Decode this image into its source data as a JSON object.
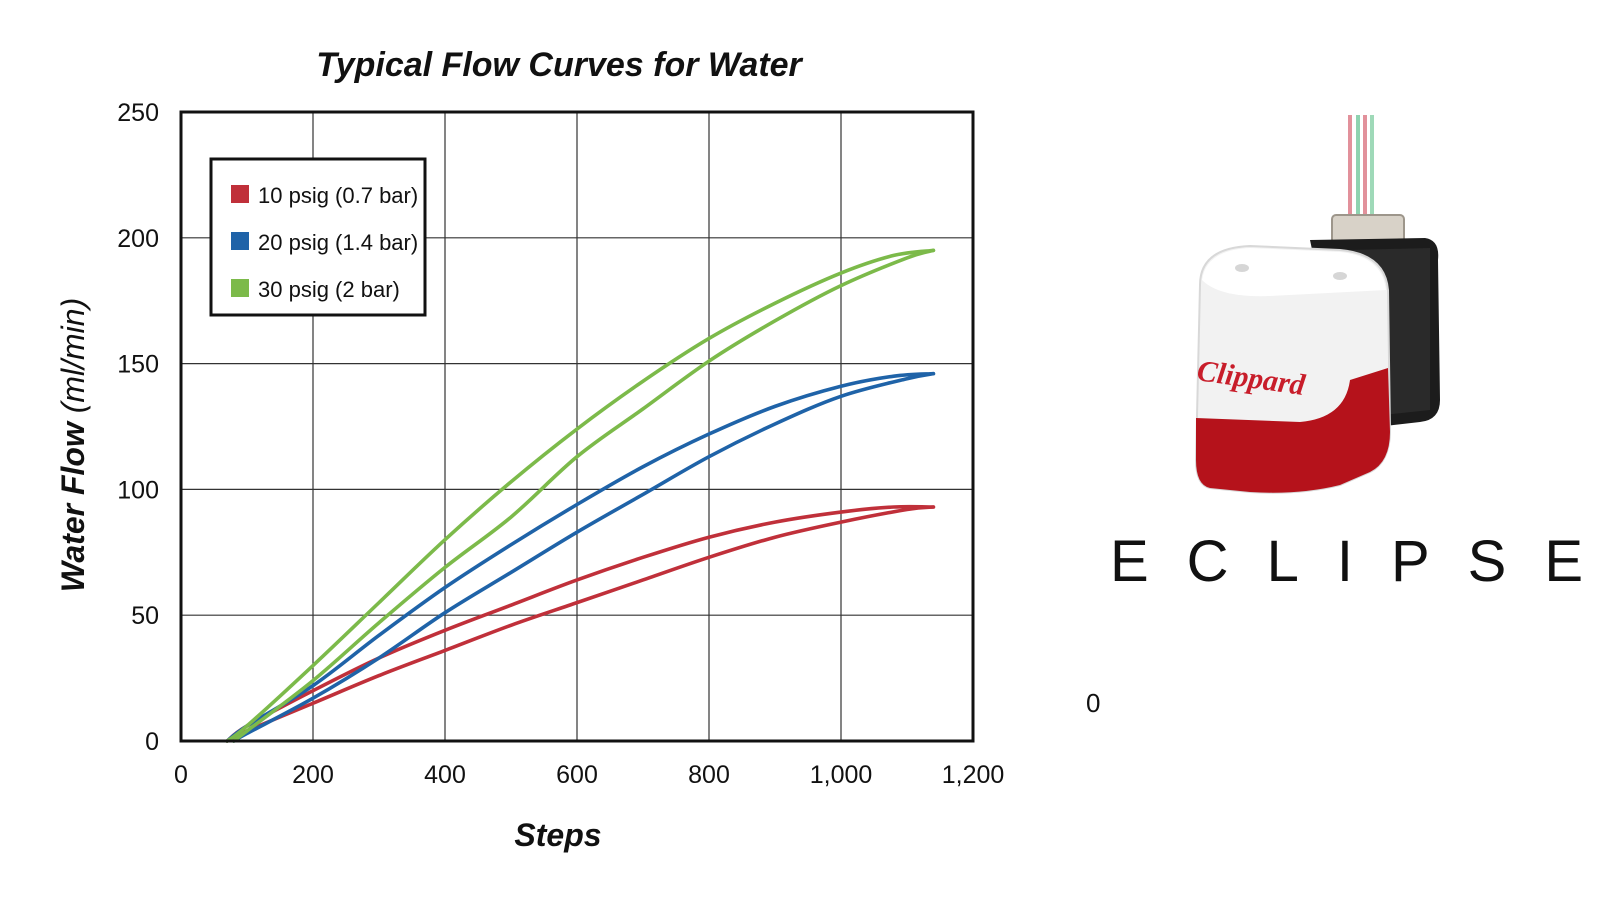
{
  "chart_data": {
    "type": "line",
    "title": "Typical Flow Curves for Water",
    "xlabel": "Steps",
    "ylabel": "Water Flow",
    "ylabel_unit": "(ml/min)",
    "xlim": [
      0,
      1200
    ],
    "ylim": [
      0,
      250
    ],
    "xticks": [
      0,
      200,
      400,
      600,
      800,
      1000,
      1200
    ],
    "xtick_labels": [
      "0",
      "200",
      "400",
      "600",
      "800",
      "1,000",
      "1,200"
    ],
    "yticks": [
      0,
      50,
      100,
      150,
      200,
      250
    ],
    "ytick_labels": [
      "0",
      "50",
      "100",
      "150",
      "200",
      "250"
    ],
    "grid": true,
    "legend_position": "top-left",
    "series": [
      {
        "name": "10 psig (0.7 bar)",
        "color": "#c0303a",
        "opening": [
          [
            70,
            0
          ],
          [
            100,
            4
          ],
          [
            200,
            15
          ],
          [
            300,
            26
          ],
          [
            400,
            36
          ],
          [
            500,
            46
          ],
          [
            600,
            55
          ],
          [
            700,
            64
          ],
          [
            800,
            73
          ],
          [
            900,
            81
          ],
          [
            1000,
            87
          ],
          [
            1100,
            92
          ],
          [
            1140,
            93
          ]
        ],
        "closing": [
          [
            70,
            0
          ],
          [
            100,
            6
          ],
          [
            200,
            20
          ],
          [
            300,
            33
          ],
          [
            400,
            44
          ],
          [
            500,
            54
          ],
          [
            600,
            64
          ],
          [
            700,
            73
          ],
          [
            800,
            81
          ],
          [
            900,
            87
          ],
          [
            1000,
            91
          ],
          [
            1080,
            93
          ],
          [
            1140,
            93
          ]
        ]
      },
      {
        "name": "20 psig (1.4 bar)",
        "color": "#1f63a8",
        "opening": [
          [
            80,
            0
          ],
          [
            100,
            3
          ],
          [
            200,
            17
          ],
          [
            300,
            33
          ],
          [
            400,
            51
          ],
          [
            500,
            67
          ],
          [
            600,
            83
          ],
          [
            700,
            98
          ],
          [
            800,
            113
          ],
          [
            900,
            126
          ],
          [
            1000,
            137
          ],
          [
            1100,
            144
          ],
          [
            1140,
            146
          ]
        ],
        "closing": [
          [
            70,
            0
          ],
          [
            100,
            6
          ],
          [
            200,
            22
          ],
          [
            300,
            42
          ],
          [
            400,
            61
          ],
          [
            500,
            78
          ],
          [
            600,
            94
          ],
          [
            700,
            109
          ],
          [
            800,
            122
          ],
          [
            900,
            133
          ],
          [
            1000,
            141
          ],
          [
            1080,
            145
          ],
          [
            1140,
            146
          ]
        ]
      },
      {
        "name": "30 psig (2 bar)",
        "color": "#7cba4a",
        "opening": [
          [
            80,
            0
          ],
          [
            100,
            4
          ],
          [
            200,
            24
          ],
          [
            300,
            47
          ],
          [
            400,
            69
          ],
          [
            500,
            89
          ],
          [
            600,
            113
          ],
          [
            700,
            132
          ],
          [
            800,
            151
          ],
          [
            900,
            167
          ],
          [
            1000,
            181
          ],
          [
            1100,
            192
          ],
          [
            1140,
            195
          ]
        ],
        "closing": [
          [
            70,
            0
          ],
          [
            100,
            6
          ],
          [
            200,
            30
          ],
          [
            300,
            55
          ],
          [
            400,
            80
          ],
          [
            500,
            103
          ],
          [
            600,
            124
          ],
          [
            700,
            143
          ],
          [
            800,
            160
          ],
          [
            900,
            174
          ],
          [
            1000,
            186
          ],
          [
            1080,
            193
          ],
          [
            1140,
            195
          ]
        ]
      }
    ]
  },
  "product": {
    "brand_on_device": "Clippard",
    "name": "ECLIPSE",
    "stray_text": "0",
    "colors": {
      "housing": "#f3f3f3",
      "band": "#b5121b",
      "motor": "#1a1a1a"
    }
  }
}
